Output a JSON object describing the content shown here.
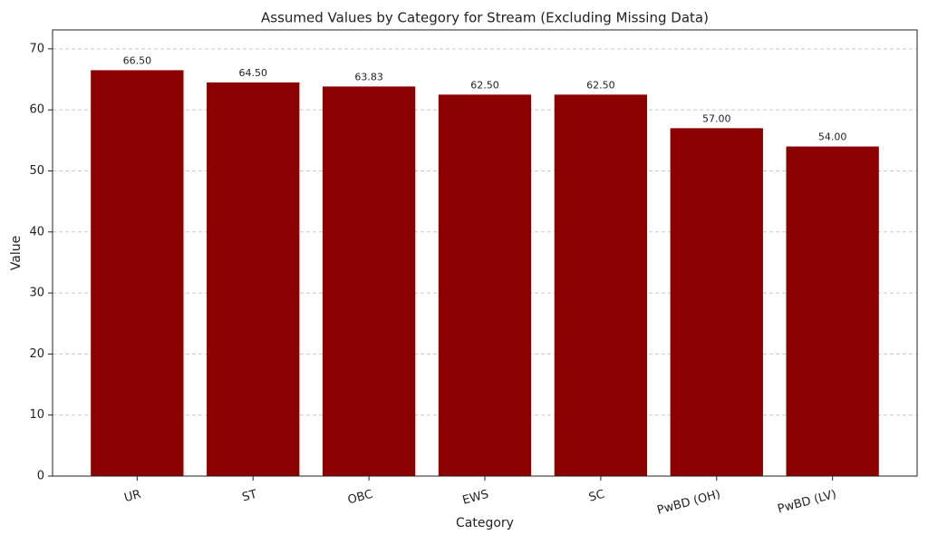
{
  "chart_data": {
    "type": "bar",
    "title": "Assumed Values by Category for Stream (Excluding Missing Data)",
    "x_label": "Category",
    "y_label": "Value",
    "categories": [
      "UR",
      "ST",
      "OBC",
      "EWS",
      "SC",
      "PwBD (OH)",
      "PwBD (LV)"
    ],
    "values": [
      66.5,
      64.5,
      63.83,
      62.5,
      62.5,
      57,
      54
    ],
    "value_labels": [
      "66.50",
      "64.50",
      "63.83",
      "62.50",
      "62.50",
      "57.00",
      "54.00"
    ],
    "color": "#8b0000",
    "ylim": [
      0,
      73.1
    ],
    "yticks": [
      0,
      10,
      20,
      30,
      40,
      50,
      60,
      70
    ],
    "grid": true
  }
}
